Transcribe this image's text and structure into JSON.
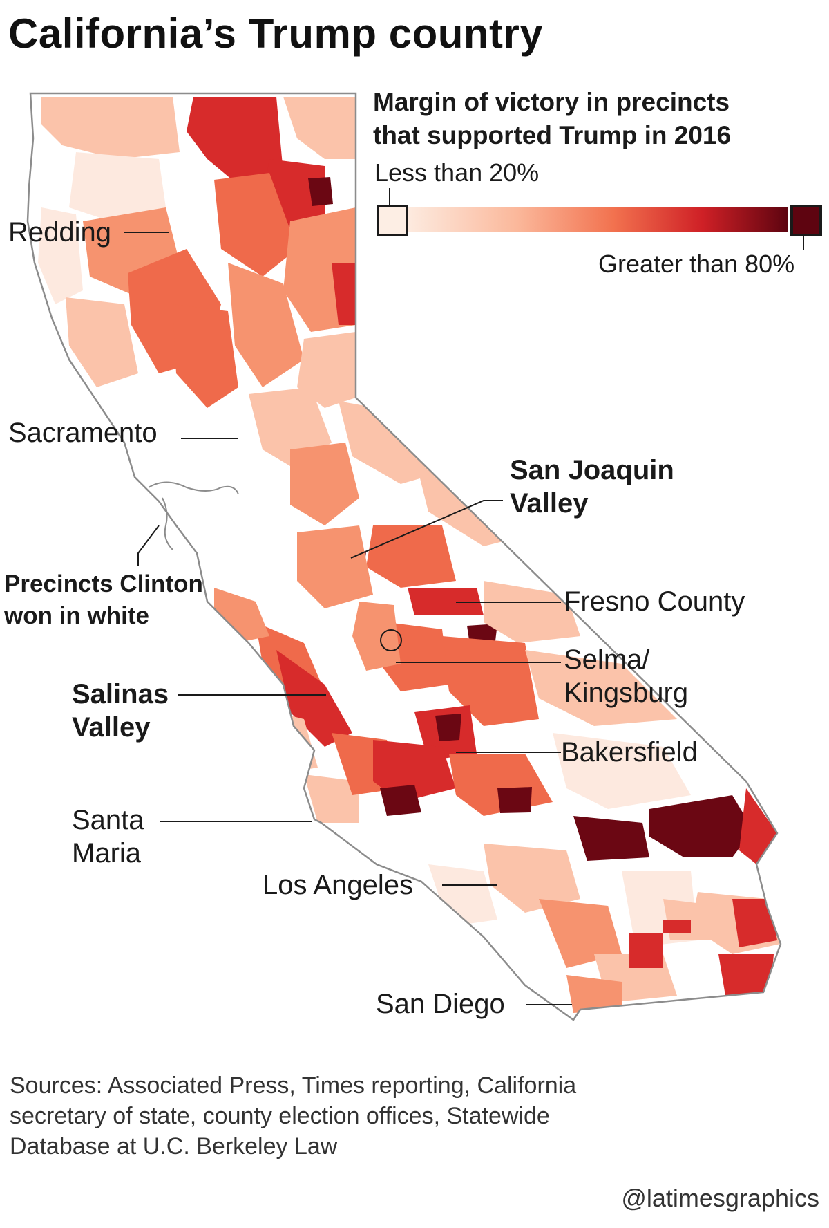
{
  "title": "California’s Trump country",
  "legend": {
    "title_lines": [
      "Margin of victory in precincts",
      "that supported Trump in 2016"
    ],
    "low_label": "Less than 20%",
    "high_label": "Greater than 80%",
    "colors": {
      "white": "#ffffff",
      "lightest": "#fde9df",
      "light": "#fbc3aa",
      "medium": "#f6936f",
      "strong": "#ef6a4b",
      "deep": "#d72b2b",
      "darkest": "#6b0713",
      "outline": "#8c8c8c"
    }
  },
  "labels": {
    "redding": "Redding",
    "sacramento": "Sacramento",
    "san_joaquin": [
      "San Joaquin",
      "Valley"
    ],
    "clinton": [
      "Precincts Clinton",
      "won in white"
    ],
    "fresno": "Fresno County",
    "selma": [
      "Selma/",
      "Kingsburg"
    ],
    "salinas": [
      "Salinas",
      "Valley"
    ],
    "bakersfield": "Bakersfield",
    "santa_maria": [
      "Santa",
      "Maria"
    ],
    "los_angeles": "Los Angeles",
    "san_diego": "San Diego"
  },
  "sources": [
    "Sources: Associated Press, Times reporting, California",
    "secretary of state, county election offices, Statewide",
    "Database at U.C. Berkeley Law"
  ],
  "credit": "@latimesgraphics"
}
